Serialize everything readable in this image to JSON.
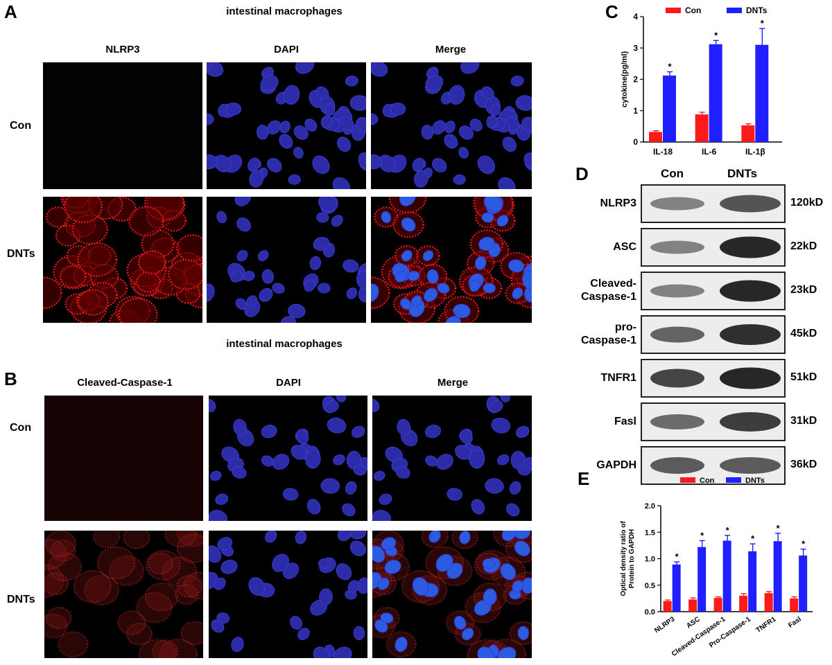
{
  "panel_a": {
    "letter": "A",
    "title": "intestinal macrophages",
    "columns": [
      "NLRP3",
      "DAPI",
      "Merge"
    ],
    "rows": [
      "Con",
      "DNTs"
    ]
  },
  "panel_b": {
    "letter": "B",
    "title": "intestinal macrophages",
    "columns": [
      "Cleaved-Caspase-1",
      "DAPI",
      "Merge"
    ],
    "rows": [
      "Con",
      "DNTs"
    ]
  },
  "panel_d": {
    "letter": "D",
    "lanes": [
      "Con",
      "DNTs"
    ],
    "bands": [
      {
        "name": "NLRP3",
        "mw": "120kD",
        "con": 0.35,
        "dnt": 0.65
      },
      {
        "name": "ASC",
        "mw": "22kD",
        "con": 0.35,
        "dnt": 0.95
      },
      {
        "name": "Cleaved-\nCaspase-1",
        "mw": "23kD",
        "con": 0.35,
        "dnt": 0.95
      },
      {
        "name": "pro-\nCaspase-1",
        "mw": "45kD",
        "con": 0.55,
        "dnt": 0.9
      },
      {
        "name": "TNFR1",
        "mw": "51kD",
        "con": 0.75,
        "dnt": 0.95
      },
      {
        "name": "Fasl",
        "mw": "31kD",
        "con": 0.5,
        "dnt": 0.8
      },
      {
        "name": "GAPDH",
        "mw": "36kD",
        "con": 0.6,
        "dnt": 0.6
      }
    ]
  },
  "colors": {
    "con": "#ff1a1a",
    "dnt": "#1f1fff"
  },
  "chart_data": [
    {
      "letter": "C",
      "type": "bar",
      "ylabel": "cytokine(pg/ml)",
      "categories": [
        "IL-18",
        "IL-6",
        "IL-1β"
      ],
      "series": [
        {
          "name": "Con",
          "values": [
            0.32,
            0.88,
            0.53
          ],
          "errors": [
            0.04,
            0.07,
            0.05
          ]
        },
        {
          "name": "DNTs",
          "values": [
            2.12,
            3.12,
            3.1
          ],
          "errors": [
            0.12,
            0.12,
            0.52
          ]
        }
      ],
      "ylim": [
        0,
        4
      ],
      "yticks": [
        "0",
        "1",
        "2",
        "3",
        "4"
      ],
      "significance": [
        "*",
        "*",
        "*"
      ],
      "legend": "top"
    },
    {
      "letter": "E",
      "type": "bar",
      "ylabel": "Optical density ratio of Protein to GAPDH",
      "categories": [
        "NLRP3",
        "ASC",
        "Cleaved-Caspase-1",
        "Pro-Caspase-1",
        "TNFR1",
        "Fasl"
      ],
      "series": [
        {
          "name": "Con",
          "values": [
            0.2,
            0.23,
            0.26,
            0.3,
            0.35,
            0.25
          ],
          "errors": [
            0.02,
            0.03,
            0.02,
            0.04,
            0.03,
            0.03
          ]
        },
        {
          "name": "DNTs",
          "values": [
            0.89,
            1.22,
            1.34,
            1.14,
            1.33,
            1.06
          ],
          "errors": [
            0.05,
            0.12,
            0.1,
            0.14,
            0.15,
            0.12
          ]
        }
      ],
      "ylim": [
        0,
        2
      ],
      "yticks": [
        "0.0",
        "0.5",
        "1.0",
        "1.5",
        "2.0"
      ],
      "significance": [
        "*",
        "*",
        "*",
        "*",
        "*",
        "*"
      ],
      "legend": "top"
    }
  ]
}
